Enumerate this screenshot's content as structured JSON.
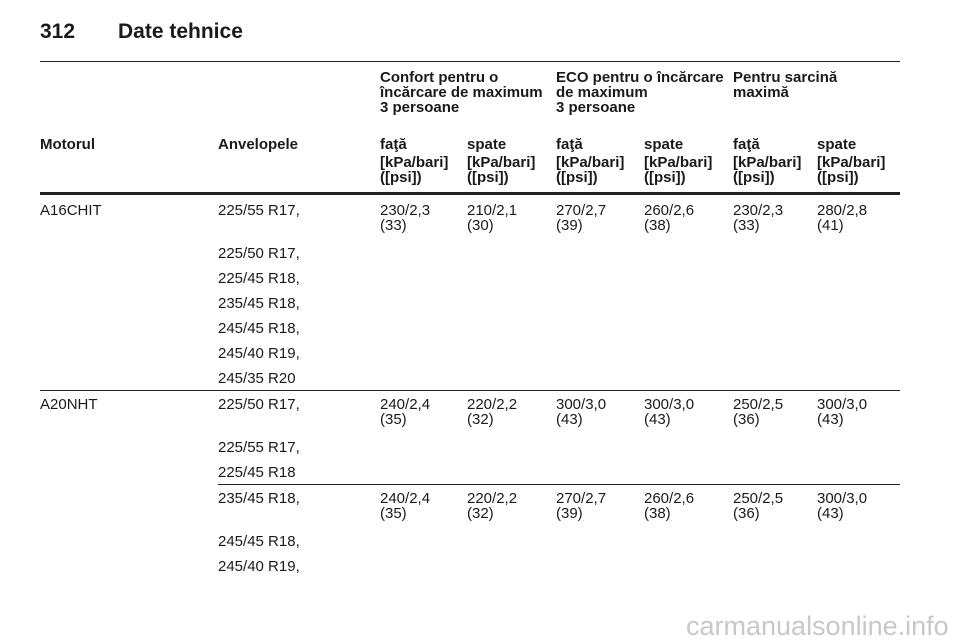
{
  "header": {
    "page_number": "312",
    "title": "Date tehnice"
  },
  "table": {
    "group_headers": [
      "Confort pentru o\nîncărcare de maximum\n3 persoane",
      "ECO pentru o încărcare\nde maximum\n3 persoane",
      "Pentru sarcină\nmaximă"
    ],
    "column_headers": [
      "Motorul",
      "Anvelopele",
      "faţă",
      "spate",
      "faţă",
      "spate",
      "faţă",
      "spate"
    ],
    "units": [
      "[kPa/bari]\n([psi])",
      "[kPa/bari]\n([psi])",
      "[kPa/bari]\n([psi])",
      "[kPa/bari]\n([psi])",
      "[kPa/bari]\n([psi])",
      "[kPa/bari]\n([psi])"
    ],
    "rows": [
      {
        "engine": "A16CHIT",
        "tyres": [
          "225/55 R17,",
          "225/50 R17,",
          "225/45 R18,",
          "235/45 R18,",
          "245/45 R18,",
          "245/40 R19,",
          "245/35 R20"
        ],
        "pressures": [
          "230/2,3\n(33)",
          "210/2,1\n(30)",
          "270/2,7\n(39)",
          "260/2,6\n(38)",
          "230/2,3\n(33)",
          "280/2,8\n(41)"
        ]
      },
      {
        "engine": "A20NHT",
        "tyres": [
          "225/50 R17,",
          "225/55 R17,",
          "225/45 R18"
        ],
        "pressures": [
          "240/2,4\n(35)",
          "220/2,2\n(32)",
          "300/3,0\n(43)",
          "300/3,0\n(43)",
          "250/2,5\n(36)",
          "300/3,0\n(43)"
        ]
      },
      {
        "tyres": [
          "235/45 R18,",
          "245/45 R18,",
          "245/40 R19,"
        ],
        "pressures": [
          "240/2,4\n(35)",
          "220/2,2\n(32)",
          "270/2,7\n(39)",
          "260/2,6\n(38)",
          "250/2,5\n(36)",
          "300/3,0\n(43)"
        ]
      }
    ]
  },
  "watermark": "carmanualsonline.info"
}
